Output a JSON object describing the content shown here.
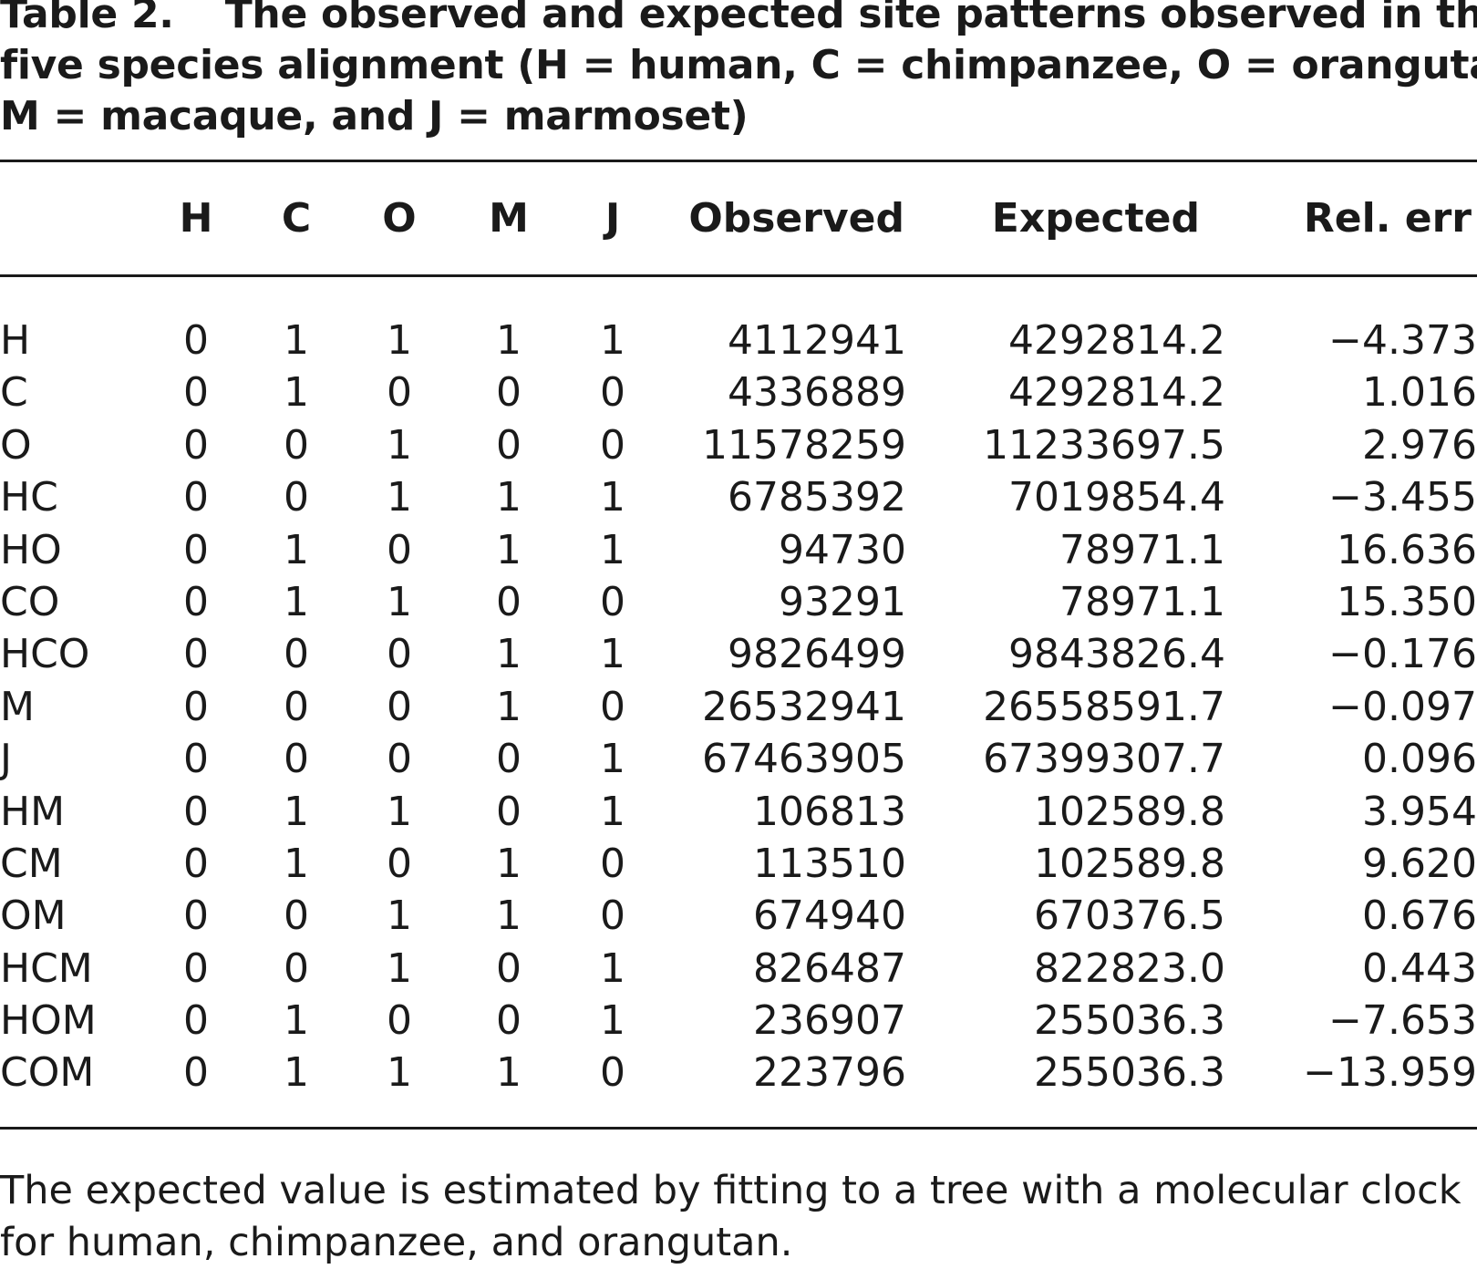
{
  "caption": {
    "label": "Table 2.",
    "line1": "The observed and expected site patterns observed in the",
    "line2": "five species alignment (H = human, C = chimpanzee, O = orangutan,",
    "line3": "M = macaque, and J = marmoset)"
  },
  "columns": {
    "pattern": "",
    "h": "H",
    "c": "C",
    "o": "O",
    "m": "M",
    "j": "J",
    "observed": "Observed",
    "expected": "Expected",
    "rel_err": "Rel. err"
  },
  "rows": [
    {
      "pattern": "H",
      "h": "0",
      "c": "1",
      "o": "1",
      "m": "1",
      "j": "1",
      "observed": "4112941",
      "expected": "4292814.2",
      "rel_err": "−4.373"
    },
    {
      "pattern": "C",
      "h": "0",
      "c": "1",
      "o": "0",
      "m": "0",
      "j": "0",
      "observed": "4336889",
      "expected": "4292814.2",
      "rel_err": "1.016"
    },
    {
      "pattern": "O",
      "h": "0",
      "c": "0",
      "o": "1",
      "m": "0",
      "j": "0",
      "observed": "11578259",
      "expected": "11233697.5",
      "rel_err": "2.976"
    },
    {
      "pattern": "HC",
      "h": "0",
      "c": "0",
      "o": "1",
      "m": "1",
      "j": "1",
      "observed": "6785392",
      "expected": "7019854.4",
      "rel_err": "−3.455"
    },
    {
      "pattern": "HO",
      "h": "0",
      "c": "1",
      "o": "0",
      "m": "1",
      "j": "1",
      "observed": "94730",
      "expected": "78971.1",
      "rel_err": "16.636"
    },
    {
      "pattern": "CO",
      "h": "0",
      "c": "1",
      "o": "1",
      "m": "0",
      "j": "0",
      "observed": "93291",
      "expected": "78971.1",
      "rel_err": "15.350"
    },
    {
      "pattern": "HCO",
      "h": "0",
      "c": "0",
      "o": "0",
      "m": "1",
      "j": "1",
      "observed": "9826499",
      "expected": "9843826.4",
      "rel_err": "−0.176"
    },
    {
      "pattern": "M",
      "h": "0",
      "c": "0",
      "o": "0",
      "m": "1",
      "j": "0",
      "observed": "26532941",
      "expected": "26558591.7",
      "rel_err": "−0.097"
    },
    {
      "pattern": "J",
      "h": "0",
      "c": "0",
      "o": "0",
      "m": "0",
      "j": "1",
      "observed": "67463905",
      "expected": "67399307.7",
      "rel_err": "0.096"
    },
    {
      "pattern": "HM",
      "h": "0",
      "c": "1",
      "o": "1",
      "m": "0",
      "j": "1",
      "observed": "106813",
      "expected": "102589.8",
      "rel_err": "3.954"
    },
    {
      "pattern": "CM",
      "h": "0",
      "c": "1",
      "o": "0",
      "m": "1",
      "j": "0",
      "observed": "113510",
      "expected": "102589.8",
      "rel_err": "9.620"
    },
    {
      "pattern": "OM",
      "h": "0",
      "c": "0",
      "o": "1",
      "m": "1",
      "j": "0",
      "observed": "674940",
      "expected": "670376.5",
      "rel_err": "0.676"
    },
    {
      "pattern": "HCM",
      "h": "0",
      "c": "0",
      "o": "1",
      "m": "0",
      "j": "1",
      "observed": "826487",
      "expected": "822823.0",
      "rel_err": "0.443"
    },
    {
      "pattern": "HOM",
      "h": "0",
      "c": "1",
      "o": "0",
      "m": "0",
      "j": "1",
      "observed": "236907",
      "expected": "255036.3",
      "rel_err": "−7.653"
    },
    {
      "pattern": "COM",
      "h": "0",
      "c": "1",
      "o": "1",
      "m": "1",
      "j": "0",
      "observed": "223796",
      "expected": "255036.3",
      "rel_err": "−13.959"
    }
  ],
  "footnote": {
    "line1": "The expected value is estimated by fitting to a tree with a molecular clock",
    "line2": "for human, chimpanzee, and orangutan."
  }
}
